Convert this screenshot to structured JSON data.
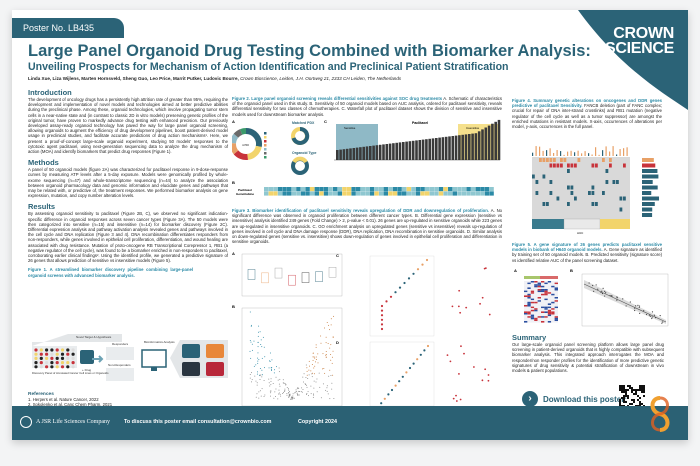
{
  "header": {
    "poster_no": "Poster No. LB435",
    "logo": "CROWN BIOSCIENCE",
    "title": "Large Panel Organoid Drug Testing Combined with Biomarker Analysis:",
    "subtitle": "Unveiling Prospects for Mechanism of Action Identification and Preclinical Patient Stratification",
    "authors": "Linda Xue, Liza Wijlens, Marten Hornsveld, Sheng Guo, Leo Price, Marrit Putker, Ludovic Bourre,",
    "affiliation": "Crown Bioscience, Leiden, J.H. Oortweg 21, 2333 CH Leiden, The Netherlands"
  },
  "intro": {
    "heading": "Introduction",
    "text": "The development of oncology drugs has a persistently high attrition rate of greater than 95%, requiring the development and implementation of novel models and technologies aimed at better predictive abilities during the preclinical phase. Among these, organoid technologies, which involve propagating tumor stem cells in a near-native state and (in contrast to classic 2D in vitro models) preserving genetic profiles of the original tumor, have proven to markedly advance drug testing with enhanced precision. Our previously developed assay-ready organoid technology has paved the way for large panel organoid screening, allowing organoids to augment the efficiency of drug development pipelines, boost patient-derived model usage in preclinical studies, and facilitate accurate predictions of drug action mechanisms¹. Here, we present a proof-of-concept large-scale organoid experiment, studying 50 models' responses to the cytotoxic agent paclitaxel, using next-generation sequencing data to analyze the drug mechanism of action (MOA) and identify biomarkers that predict drug responses (Figure 1)."
  },
  "methods": {
    "heading": "Methods",
    "text": "A panel of 50 organoid models (figure 2A) was characterized for paclitaxel response in 9-dose-response curves by measuring ATP levels after a 5-day exposure. Models were genomically profiled by whole-exome sequencing (n=47) and whole-transcriptome sequencing (n=44) to analyze the association between organoid pharmacology data and genomic information and elucidate genes and pathways that may be related with, or predictive of, the treatment responses. We performed biomarker analysis on gene expression, mutation, and copy number alteration levels."
  },
  "results": {
    "heading": "Results",
    "text": "By assessing organoid sensitivity to paclitaxel (Figure 2B, C), we observed no significant indication-specific difference in organoid responses across seven cancer types (Figure 3A). The 50 models were then categorized into sensitive (n=15) and insensitive (n=14) for biomarker discovery (Figure 2C). Differential expression analysis and pathway activation analysis revealed genes and pathways involved in the cell cycle and DNA replication (Figure 3 and 4). DNA recombination differentiates responders from non-responders, while genes involved in epithelial cell proliferation, differentiation, and wound healing are associated with drug resistance. Mutation of proto-oncogene RB Transcriptional Corepressor 1, RB1 (a negative regulator of the cell cycle), was found to be a biomarker enriched in non-responders to paclitaxel, corroborating earlier clinical findings². Using the identified profile, we generated a predictive signature of 26 genes that allows prediction of sensitive vs insensitive models (Figure 5)."
  },
  "fig1": {
    "caption_title": "Figure 1. A streamlined biomarker discovery pipeline combining large-panel organoid screens with advanced biomarker analysis.",
    "novel": "Novel Target & Hypothesis",
    "responders": "Responders",
    "non_responders": "Non-Responders",
    "bioinf": "Bioinformatics Analysis",
    "drug": "+ Drug",
    "panel": "Discovery Panel of Annotated Cancer Cell Lines or Organoids"
  },
  "references": {
    "heading": "References",
    "items": [
      "1. Herpers et al. Nature Cancer, 2022",
      "2. Sokolenko et al. Canc Chem Pharm, 2021"
    ]
  },
  "fig2": {
    "caption_title": "Figure 2. Large panel organoid screening reveals differential sensitivities against SOC drug treatments",
    "caption": " A. Schematic of characteristics of the organoid panel used in this study. B. Sensitivity of 50 organoid models based on AUC analysis, ordered for paclitaxel sensitivity, reveals differential sensitivity for two classes of chemotherapies. C. Waterfall plot of paclitaxel dataset shows the division of sensitive and insensitive models used for downstream biomarker analysis.",
    "a": "A",
    "b": "B",
    "c": "C",
    "n": "n=50",
    "matched": "Matched PDX",
    "organoid_type": "Organoid Type",
    "paclitaxel": "Paclitaxel",
    "sensitive": "Sensitive",
    "insensitive": "Insensitive",
    "hm_row1": "Paclitaxel",
    "hm_row2": "Gemcitabine"
  },
  "fig3": {
    "caption_title": "Figure 3. Biomarker identification of paclitaxel sensitivity reveals upregulation of DDR and downregulation of proliferation.",
    "caption": " A. No significant difference was observed in organoid proliferation between different cancer types. B. Differential gene expression (sensitive vs insensitive) analysis identified 249 genes (Fold Change) > 2, p-value < 0.01). 26 genes are up-regulated in sensitive organoids while 223 genes are up-regulated in insensitive organoids. C. GO enrichment analysis on upregulated genes (sensitive vs insensitive) reveals up-regulation of genes involved in cell cycle and DNA damage response (DDR), DNA replication, DNA recombination in sensitive organoids. D. Similar analysis on down-regulated genes (sensitive vs. insensitive) shows down-regulation of genes involved in epithelial cell proliferation and differentiation in sensitive organoids.",
    "a": "A",
    "b": "B",
    "c": "C",
    "d": "D"
  },
  "fig4": {
    "caption_title": "Figure 4. Summary genetic alterations on oncogenes and DDR genes predictive of paclitaxel Sensitivity.",
    "caption": " FANCB deletion (part of FANC complex; crucial for repair of DNA inter-strand crosslinks) and RB1 mutation (negative regulator of the cell cycle as well as a tumor suppressor) are amongst the enriched mutations in resistant models. X-axis, occurrences of alterations per model, y-axis, occurrences in the full panel.",
    "auc": "AUC"
  },
  "fig5": {
    "caption_title": "Figure 5. A gene signature of 26 genes predicts paclitaxel sensitive models in biobank of H640 organoid models.",
    "caption": " A. Gene signature as identified by training set of 50 organoid models. B. Predicted sensitivity (signature score) vs identified relative AUC of the panel screening dataset.",
    "a": "A",
    "b": "B"
  },
  "summary": {
    "heading": "Summary",
    "text": "Our large-scale organoid panel screening platform allows large panel drug screening in patient-derived organoids that is highly compatible with subsequent biomarker analysis. This integrated approach interrogates the MOA and responder/non responder profiles for the identification of more predictive genetic signatures of drug sensitivity & potential stratification of downstream in vivo models & patient populations."
  },
  "download": {
    "label": "Download this poster:",
    "icon": "chevron-right-icon"
  },
  "footer": {
    "company": "A JSR Life Sciences Company",
    "contact": "To discuss this poster email consultation@crownbio.com",
    "copyright": "Copyright 2024"
  },
  "colors": {
    "teal": "#2b6377",
    "yellow": "#f2d46b",
    "orange": "#e8a066",
    "red": "#c8333b",
    "light_teal": "#8fb9c6"
  }
}
